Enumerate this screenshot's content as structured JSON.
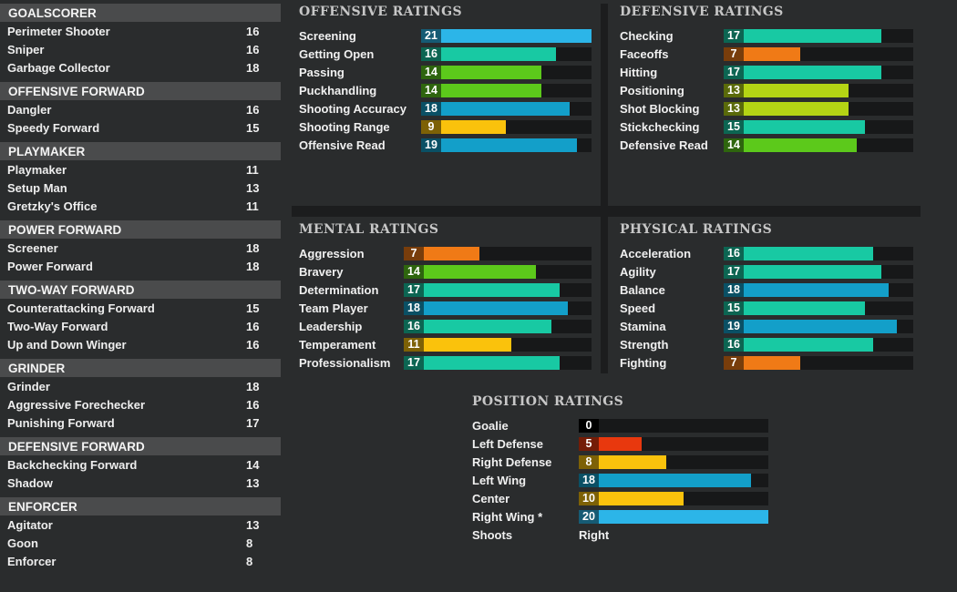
{
  "colors": {
    "cyan": "#2cb5e8",
    "blue": "#139fc9",
    "teal": "#18c9a3",
    "green": "#5cc91b",
    "lime": "#b4d414",
    "yellow": "#fac20c",
    "orange": "#f07a16",
    "red": "#e8380e",
    "bar_bg": "#171819"
  },
  "role_groups": [
    {
      "title": "GOALSCORER",
      "items": [
        {
          "name": "Perimeter Shooter",
          "value": "16"
        },
        {
          "name": "Sniper",
          "value": "16"
        },
        {
          "name": "Garbage Collector",
          "value": "18"
        }
      ]
    },
    {
      "title": "OFFENSIVE FORWARD",
      "items": [
        {
          "name": "Dangler",
          "value": "16"
        },
        {
          "name": "Speedy Forward",
          "value": "15"
        }
      ]
    },
    {
      "title": "PLAYMAKER",
      "items": [
        {
          "name": "Playmaker",
          "value": "11"
        },
        {
          "name": "Setup Man",
          "value": "13"
        },
        {
          "name": "Gretzky's Office",
          "value": "11"
        }
      ]
    },
    {
      "title": "POWER FORWARD",
      "items": [
        {
          "name": "Screener",
          "value": "18"
        },
        {
          "name": "Power Forward",
          "value": "18"
        }
      ]
    },
    {
      "title": "TWO-WAY FORWARD",
      "items": [
        {
          "name": "Counterattacking Forward",
          "value": "15"
        },
        {
          "name": "Two-Way Forward",
          "value": "16"
        },
        {
          "name": "Up and Down Winger",
          "value": "16"
        }
      ]
    },
    {
      "title": "GRINDER",
      "items": [
        {
          "name": "Grinder",
          "value": "18"
        },
        {
          "name": "Aggressive Forechecker",
          "value": "16"
        },
        {
          "name": "Punishing Forward",
          "value": "17"
        }
      ]
    },
    {
      "title": "DEFENSIVE FORWARD",
      "items": [
        {
          "name": "Backchecking Forward",
          "value": "14"
        },
        {
          "name": "Shadow",
          "value": "13"
        }
      ]
    },
    {
      "title": "ENFORCER",
      "items": [
        {
          "name": "Agitator",
          "value": "13"
        },
        {
          "name": "Goon",
          "value": "8"
        },
        {
          "name": "Enforcer",
          "value": "8"
        }
      ]
    }
  ],
  "panels": {
    "offensive": {
      "title": "OFFENSIVE RATINGS",
      "max": 21,
      "rows": [
        {
          "name": "Screening",
          "value": 21
        },
        {
          "name": "Getting Open",
          "value": 16
        },
        {
          "name": "Passing",
          "value": 14
        },
        {
          "name": "Puckhandling",
          "value": 14
        },
        {
          "name": "Shooting Accuracy",
          "value": 18
        },
        {
          "name": "Shooting Range",
          "value": 9
        },
        {
          "name": "Offensive Read",
          "value": 19
        }
      ]
    },
    "defensive": {
      "title": "DEFENSIVE RATINGS",
      "max": 21,
      "rows": [
        {
          "name": "Checking",
          "value": 17
        },
        {
          "name": "Faceoffs",
          "value": 7
        },
        {
          "name": "Hitting",
          "value": 17
        },
        {
          "name": "Positioning",
          "value": 13
        },
        {
          "name": "Shot Blocking",
          "value": 13
        },
        {
          "name": "Stickchecking",
          "value": 15
        },
        {
          "name": "Defensive Read",
          "value": 14
        }
      ]
    },
    "mental": {
      "title": "MENTAL RATINGS",
      "max": 21,
      "rows": [
        {
          "name": "Aggression",
          "value": 7
        },
        {
          "name": "Bravery",
          "value": 14
        },
        {
          "name": "Determination",
          "value": 17
        },
        {
          "name": "Team Player",
          "value": 18
        },
        {
          "name": "Leadership",
          "value": 16
        },
        {
          "name": "Temperament",
          "value": 11
        },
        {
          "name": "Professionalism",
          "value": 17
        }
      ]
    },
    "physical": {
      "title": "PHYSICAL RATINGS",
      "max": 21,
      "rows": [
        {
          "name": "Acceleration",
          "value": 16
        },
        {
          "name": "Agility",
          "value": 17
        },
        {
          "name": "Balance",
          "value": 18
        },
        {
          "name": "Speed",
          "value": 15
        },
        {
          "name": "Stamina",
          "value": 19
        },
        {
          "name": "Strength",
          "value": 16
        },
        {
          "name": "Fighting",
          "value": 7
        }
      ]
    },
    "position": {
      "title": "POSITION RATINGS",
      "max": 20,
      "rows": [
        {
          "name": "Goalie",
          "value": 0
        },
        {
          "name": "Left Defense",
          "value": 5
        },
        {
          "name": "Right Defense",
          "value": 8
        },
        {
          "name": "Left Wing",
          "value": 18
        },
        {
          "name": "Center",
          "value": 10
        },
        {
          "name": "Right Wing *",
          "value": 20
        }
      ],
      "shoots": {
        "label": "Shoots",
        "value": "Right"
      }
    }
  }
}
